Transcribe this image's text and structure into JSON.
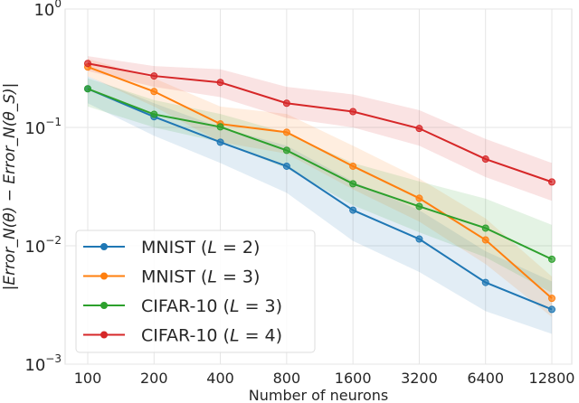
{
  "chart_data": {
    "type": "line",
    "title": "",
    "xlabel": "Number of neurons",
    "ylabel": "|Error_N(θ) − Error_N(θ_S)|",
    "x": [
      "100",
      "200",
      "400",
      "800",
      "1600",
      "3200",
      "6400",
      "12800"
    ],
    "x_scale": "log2 (categorical)",
    "y_scale": "log",
    "ylim": [
      0.001,
      1
    ],
    "y_ticks": [
      {
        "base": "10",
        "exp": "0"
      },
      {
        "base": "10",
        "exp": "−1"
      },
      {
        "base": "10",
        "exp": "−2"
      },
      {
        "base": "10",
        "exp": "−3"
      }
    ],
    "grid": true,
    "legend_placement": "lower-left",
    "series": [
      {
        "name": "MNIST (L = 2)",
        "label_main": "MNIST (",
        "label_var": "L",
        "label_rest": " = 2)",
        "color": "#1f77b4",
        "values": [
          0.212,
          0.123,
          0.075,
          0.047,
          0.02,
          0.0114,
          0.0049,
          0.0029
        ],
        "lower": [
          0.16,
          0.085,
          0.05,
          0.028,
          0.011,
          0.006,
          0.0028,
          0.0018
        ],
        "upper": [
          0.27,
          0.16,
          0.1,
          0.07,
          0.035,
          0.02,
          0.009,
          0.005
        ]
      },
      {
        "name": "MNIST (L = 3)",
        "label_main": "MNIST (",
        "label_var": "L",
        "label_rest": " = 3)",
        "color": "#ff7f0e",
        "values": [
          0.324,
          0.201,
          0.107,
          0.091,
          0.047,
          0.0252,
          0.0112,
          0.0036
        ],
        "lower": [
          0.27,
          0.15,
          0.075,
          0.06,
          0.03,
          0.016,
          0.007,
          0.0025
        ],
        "upper": [
          0.38,
          0.26,
          0.15,
          0.13,
          0.07,
          0.037,
          0.017,
          0.0055
        ]
      },
      {
        "name": "CIFAR-10 (L = 3)",
        "label_main": "CIFAR-10 (",
        "label_var": "L",
        "label_rest": " = 3)",
        "color": "#2ca02c",
        "values": [
          0.212,
          0.129,
          0.101,
          0.064,
          0.0334,
          0.0215,
          0.0141,
          0.0077
        ],
        "lower": [
          0.15,
          0.1,
          0.075,
          0.045,
          0.022,
          0.013,
          0.008,
          0.004
        ],
        "upper": [
          0.26,
          0.17,
          0.13,
          0.09,
          0.05,
          0.035,
          0.025,
          0.015
        ]
      },
      {
        "name": "CIFAR-10 (L = 4)",
        "label_main": "CIFAR-10 (",
        "label_var": "L",
        "label_rest": " = 4)",
        "color": "#d62728",
        "values": [
          0.347,
          0.272,
          0.24,
          0.16,
          0.136,
          0.098,
          0.054,
          0.0346
        ],
        "lower": [
          0.3,
          0.22,
          0.18,
          0.12,
          0.1,
          0.07,
          0.038,
          0.024
        ],
        "upper": [
          0.4,
          0.33,
          0.31,
          0.22,
          0.19,
          0.14,
          0.08,
          0.05
        ]
      }
    ]
  }
}
